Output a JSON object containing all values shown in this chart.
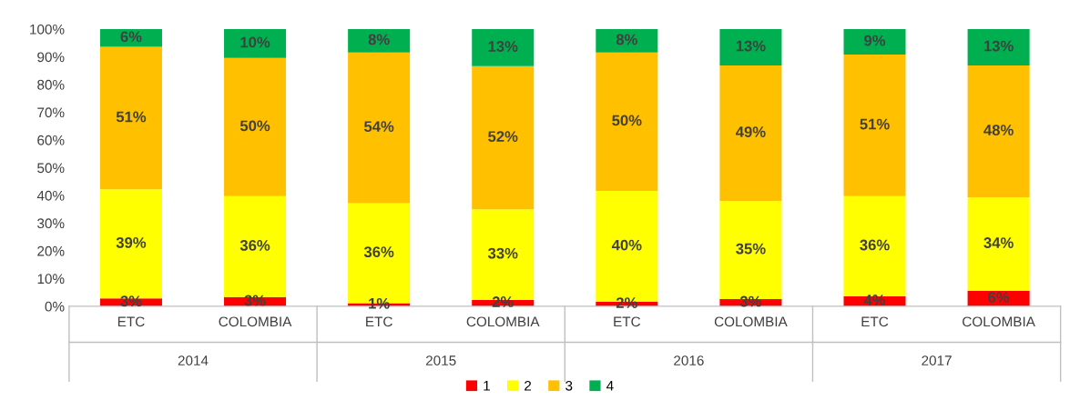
{
  "chart_data": {
    "type": "bar",
    "stacked": true,
    "categories": [
      "ETC",
      "COLOMBIA",
      "ETC",
      "COLOMBIA",
      "ETC",
      "COLOMBIA",
      "ETC",
      "COLOMBIA"
    ],
    "series": [
      {
        "name": "1",
        "color": "#ff0000",
        "values": [
          2.8,
          3.3,
          1.1,
          2.3,
          1.6,
          2.6,
          3.6,
          5.6
        ],
        "value_labels": [
          "3%",
          "3%",
          "1%",
          "2%",
          "2%",
          "3%",
          "4%",
          "6%"
        ]
      },
      {
        "name": "2",
        "color": "#ffff00",
        "values": [
          39.4,
          36.4,
          36.1,
          32.7,
          40.0,
          35.4,
          36.1,
          33.7
        ],
        "value_labels": [
          "39%",
          "36%",
          "36%",
          "33%",
          "40%",
          "35%",
          "36%",
          "34%"
        ]
      },
      {
        "name": "3",
        "color": "#ffc000",
        "values": [
          51.4,
          49.9,
          54.4,
          51.6,
          50.0,
          48.9,
          51.1,
          47.6
        ],
        "value_labels": [
          "51%",
          "50%",
          "54%",
          "52%",
          "50%",
          "49%",
          "51%",
          "48%"
        ]
      },
      {
        "name": "4",
        "color": "#00b050",
        "values": [
          6.4,
          10.4,
          8.4,
          13.4,
          8.4,
          13.1,
          9.2,
          13.1
        ],
        "value_labels": [
          "6%",
          "10%",
          "8%",
          "13%",
          "8%",
          "13%",
          "9%",
          "13%"
        ]
      }
    ],
    "ylim": [
      0,
      100
    ],
    "yticks": [
      {
        "value": 0,
        "label": "0%"
      },
      {
        "value": 10,
        "label": "10%"
      },
      {
        "value": 20,
        "label": "20%"
      },
      {
        "value": 30,
        "label": "30%"
      },
      {
        "value": 40,
        "label": "40%"
      },
      {
        "value": 50,
        "label": "50%"
      },
      {
        "value": 60,
        "label": "60%"
      },
      {
        "value": 70,
        "label": "70%"
      },
      {
        "value": 80,
        "label": "80%"
      },
      {
        "value": 90,
        "label": "90%"
      },
      {
        "value": 100,
        "label": "100%"
      }
    ],
    "annotations": [
      "2014",
      "2015",
      "2016",
      "2017"
    ],
    "grid": false,
    "legend": "bottom"
  }
}
